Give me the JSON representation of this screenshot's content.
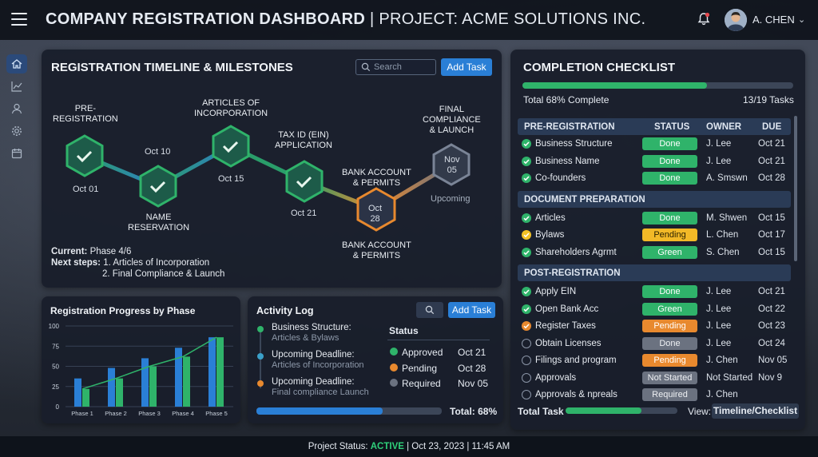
{
  "header": {
    "title_bold": "COMPANY REGISTRATION DASHBOARD",
    "title_rest": " | PROJECT: ACME SOLUTIONS INC.",
    "user_name": "A. CHEN"
  },
  "timeline": {
    "title": "REGISTRATION TIMELINE & MILESTONES",
    "search_placeholder": "Search",
    "add_task": "Add Task",
    "milestones": [
      {
        "label": "PRE-\nREGISTRATION",
        "date": "Oct 01",
        "status": "done"
      },
      {
        "label": "NAME\nRESERVATION",
        "date": "Oct 10",
        "status": "done"
      },
      {
        "label": "ARTICLES OF\nINCORPORATION",
        "date": "Oct 15",
        "status": "done"
      },
      {
        "label": "TAX ID (EIN)\nAPPLICATION",
        "date": "Oct 21",
        "status": "done"
      },
      {
        "label": "BANK ACCOUNT\n& PERMITS",
        "date_line1": "Oct",
        "date_line2": "28",
        "status": "current",
        "label_below": "BANK ACCOUNT\n& PERMITS"
      },
      {
        "label": "FINAL\nCOMPLIANCE\n& LAUNCH",
        "date_line1": "Nov",
        "date_line2": "05",
        "status": "upcoming",
        "note": "Upcoming"
      }
    ],
    "current_label": "Current:",
    "current_value": "Phase 4/6",
    "next_label": "Next steps:",
    "next_1": "1. Articles of Incorporation",
    "next_2": "2. Final Compliance & Launch"
  },
  "checklist": {
    "title": "COMPLETION CHECKLIST",
    "progress": 0.68,
    "total_text": "Total 68% Complete",
    "tasks_text": "13/19 Tasks",
    "col_status": "STATUS",
    "col_owner": "OWNER",
    "col_due": "DUE",
    "sections": [
      {
        "title": "PRE-REGISTRATION",
        "rows": [
          {
            "name": "Business Structure",
            "status": "Done",
            "owner": "J. Lee",
            "due": "Oct 21",
            "check": "green"
          },
          {
            "name": "Business Name",
            "status": "Done",
            "owner": "J. Lee",
            "due": "Oct 21",
            "check": "green"
          },
          {
            "name": "Co-founders",
            "status": "Done",
            "owner": "A. Smswn",
            "due": "Oct 28",
            "check": "green"
          }
        ]
      },
      {
        "title": "DOCUMENT PREPARATION",
        "rows": [
          {
            "name": "Articles",
            "status": "Done",
            "owner": "M. Shwen",
            "due": "Oct 15",
            "check": "green"
          },
          {
            "name": "Bylaws",
            "status": "Pending",
            "owner": "L. Chen",
            "due": "Oct 17",
            "check": "yellow"
          },
          {
            "name": "Shareholders Agrmt",
            "status": "Green",
            "owner": "S. Chen",
            "due": "Oct 15",
            "check": "green"
          }
        ]
      },
      {
        "title": "POST-REGISTRATION",
        "rows": [
          {
            "name": "Apply EIN",
            "status": "Done",
            "owner": "J. Lee",
            "due": "Oct 21",
            "check": "green"
          },
          {
            "name": "Open Bank Acc",
            "status": "Green",
            "owner": "J. Lee",
            "due": "Oct 22",
            "check": "green"
          },
          {
            "name": "Register Taxes",
            "status": "Pending",
            "owner": "J. Lee",
            "due": "Oct 23",
            "check": "orange"
          },
          {
            "name": "Obtain Licenses",
            "status": "Done",
            "owner": "J. Lee",
            "due": "Oct 24",
            "check": "empty"
          },
          {
            "name": "Filings and program",
            "status": "Pending",
            "owner": "J. Chen",
            "due": "Nov 05",
            "check": "empty"
          },
          {
            "name": "Approvals",
            "status": "Not Started",
            "owner": "Not Started",
            "due": "Nov 9",
            "check": "empty"
          },
          {
            "name": "Approvals & npreals",
            "status": "Required",
            "owner": "J. Chen",
            "due": "",
            "check": "empty"
          }
        ]
      }
    ],
    "footer_total": "Total Task",
    "footer_progress": 0.68,
    "view_label": "View:",
    "view_value": "Timeline/Checklist"
  },
  "progress_chart": {
    "title": "Registration Progress by Phase"
  },
  "chart_data": {
    "type": "bar",
    "categories": [
      "Phase 1",
      "Phase 2",
      "Phase 3",
      "Phase 4",
      "Phase 5"
    ],
    "series": [
      {
        "values": [
          35,
          48,
          60,
          73,
          86
        ]
      },
      {
        "values": [
          22,
          35,
          50,
          62,
          86
        ]
      }
    ],
    "trend": [
      22,
      35,
      50,
      62,
      86
    ],
    "ylim": [
      0,
      100
    ],
    "yticks": [
      0,
      25,
      50,
      75,
      100
    ],
    "xlabel": "",
    "ylabel": "",
    "title": "Registration Progress by Phase"
  },
  "activity": {
    "title": "Activity Log",
    "add_task": "Add Task",
    "items": [
      {
        "title": "Business Structure:",
        "sub": "Articles & Bylaws",
        "color": "#2fb36a"
      },
      {
        "title": "Upcoming Deadline:",
        "sub": "Articles of Incorporation",
        "color": "#3aa0c8"
      },
      {
        "title": "Upcoming Deadline:",
        "sub": "Final compliance Launch",
        "color": "#e8892e"
      }
    ],
    "status_title": "Status",
    "statuses": [
      {
        "label": "Approved",
        "date": "Oct 21",
        "color": "#2fb36a"
      },
      {
        "label": "Pending",
        "date": "Oct 28",
        "color": "#e8892e"
      },
      {
        "label": "Required",
        "date": "Nov 05",
        "color": "#6b7280"
      }
    ],
    "progress": 0.68,
    "total_text": "Total: 68%"
  },
  "footer": {
    "prefix": "Project Status: ",
    "status": "ACTIVE",
    "suffix": " | Oct 23, 2023 | 11:45 AM"
  }
}
